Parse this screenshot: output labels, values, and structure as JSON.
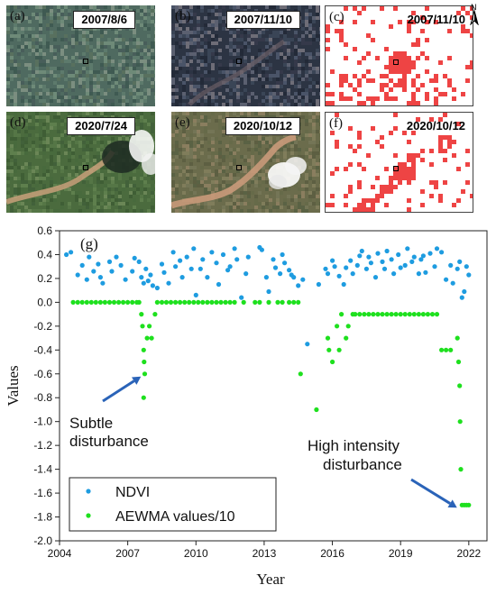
{
  "panels": [
    {
      "label": "(a)",
      "date": "2007/8/6",
      "kind": "image",
      "palette": "natural"
    },
    {
      "label": "(b)",
      "date": "2007/11/10",
      "kind": "image",
      "palette": "dark"
    },
    {
      "label": "(c)",
      "date": "2007/11/10",
      "kind": "map"
    },
    {
      "label": "(d)",
      "date": "2020/7/24",
      "kind": "image",
      "palette": "green-cloud"
    },
    {
      "label": "(e)",
      "date": "2020/10/12",
      "kind": "image",
      "palette": "brown-cloud"
    },
    {
      "label": "(f)",
      "date": "2020/10/12",
      "kind": "map"
    }
  ],
  "north_label": "N",
  "colors": {
    "ndvi": "#1e9ce0",
    "aewma": "#1ee01e",
    "disturbance": "#ee4444",
    "arrow": "#2a63b8"
  },
  "chart_data": {
    "type": "scatter",
    "panel_label": "(g)",
    "xlabel": "Year",
    "ylabel": "Values",
    "xlim": [
      2004,
      2022.8
    ],
    "ylim": [
      -2.0,
      0.6
    ],
    "x_ticks": [
      "2004",
      "2007",
      "2010",
      "2013",
      "2016",
      "2019",
      "2022"
    ],
    "y_ticks": [
      "0.6",
      "0.4",
      "0.2",
      "0.0",
      "-0.2",
      "-0.4",
      "-0.6",
      "-0.8",
      "-1.0",
      "-1.2",
      "-1.4",
      "-1.6",
      "-1.8",
      "-2.0"
    ],
    "legend": {
      "position": "bottom-left",
      "entries": [
        "NDVI",
        "AEWMA values/10"
      ]
    },
    "annotations": [
      {
        "lines": [
          "Subtle",
          "disturbance"
        ],
        "arrow_to": [
          2007.7,
          -0.6
        ]
      },
      {
        "lines": [
          "High intensity",
          "disturbance"
        ],
        "arrow_to": [
          2021.6,
          -1.7
        ]
      }
    ],
    "series": [
      {
        "name": "NDVI",
        "points": [
          [
            2004.3,
            0.4
          ],
          [
            2004.5,
            0.42
          ],
          [
            2004.8,
            0.23
          ],
          [
            2005.0,
            0.31
          ],
          [
            2005.2,
            0.19
          ],
          [
            2005.3,
            0.38
          ],
          [
            2005.5,
            0.26
          ],
          [
            2005.7,
            0.32
          ],
          [
            2005.8,
            0.21
          ],
          [
            2005.9,
            0.16
          ],
          [
            2006.2,
            0.34
          ],
          [
            2006.3,
            0.26
          ],
          [
            2006.5,
            0.38
          ],
          [
            2006.7,
            0.31
          ],
          [
            2006.9,
            0.19
          ],
          [
            2007.2,
            0.26
          ],
          [
            2007.3,
            0.37
          ],
          [
            2007.5,
            0.34
          ],
          [
            2007.6,
            0.21
          ],
          [
            2007.7,
            0.16
          ],
          [
            2007.8,
            0.28
          ],
          [
            2007.9,
            0.18
          ],
          [
            2008.0,
            0.23
          ],
          [
            2008.1,
            0.14
          ],
          [
            2008.3,
            0.12
          ],
          [
            2008.5,
            0.32
          ],
          [
            2008.6,
            0.25
          ],
          [
            2008.8,
            0.16
          ],
          [
            2009.0,
            0.42
          ],
          [
            2009.1,
            0.3
          ],
          [
            2009.3,
            0.35
          ],
          [
            2009.4,
            0.21
          ],
          [
            2009.6,
            0.38
          ],
          [
            2009.8,
            0.28
          ],
          [
            2009.9,
            0.45
          ],
          [
            2010.0,
            0.06
          ],
          [
            2010.2,
            0.28
          ],
          [
            2010.3,
            0.36
          ],
          [
            2010.5,
            0.21
          ],
          [
            2010.7,
            0.42
          ],
          [
            2010.9,
            0.33
          ],
          [
            2011.0,
            0.15
          ],
          [
            2011.2,
            0.4
          ],
          [
            2011.4,
            0.27
          ],
          [
            2011.5,
            0.3
          ],
          [
            2011.7,
            0.45
          ],
          [
            2011.8,
            0.36
          ],
          [
            2012.0,
            0.04
          ],
          [
            2012.2,
            0.24
          ],
          [
            2012.3,
            0.38
          ],
          [
            2012.8,
            0.46
          ],
          [
            2012.9,
            0.44
          ],
          [
            2013.1,
            0.21
          ],
          [
            2013.2,
            0.09
          ],
          [
            2013.4,
            0.36
          ],
          [
            2013.5,
            0.29
          ],
          [
            2013.7,
            0.24
          ],
          [
            2013.8,
            0.4
          ],
          [
            2013.9,
            0.33
          ],
          [
            2014.1,
            0.27
          ],
          [
            2014.2,
            0.23
          ],
          [
            2014.3,
            0.21
          ],
          [
            2014.5,
            0.14
          ],
          [
            2014.7,
            0.19
          ],
          [
            2014.9,
            -0.35
          ],
          [
            2015.4,
            0.15
          ],
          [
            2015.7,
            0.28
          ],
          [
            2015.8,
            0.24
          ],
          [
            2016.0,
            0.35
          ],
          [
            2016.1,
            0.3
          ],
          [
            2016.3,
            0.22
          ],
          [
            2016.5,
            0.15
          ],
          [
            2016.6,
            0.29
          ],
          [
            2016.8,
            0.35
          ],
          [
            2016.9,
            0.24
          ],
          [
            2017.1,
            0.31
          ],
          [
            2017.2,
            0.39
          ],
          [
            2017.3,
            0.43
          ],
          [
            2017.5,
            0.28
          ],
          [
            2017.6,
            0.38
          ],
          [
            2017.7,
            0.33
          ],
          [
            2017.9,
            0.21
          ],
          [
            2018.0,
            0.41
          ],
          [
            2018.2,
            0.34
          ],
          [
            2018.3,
            0.28
          ],
          [
            2018.4,
            0.43
          ],
          [
            2018.6,
            0.36
          ],
          [
            2018.7,
            0.24
          ],
          [
            2018.9,
            0.4
          ],
          [
            2019.0,
            0.29
          ],
          [
            2019.2,
            0.31
          ],
          [
            2019.3,
            0.45
          ],
          [
            2019.5,
            0.34
          ],
          [
            2019.6,
            0.38
          ],
          [
            2019.8,
            0.24
          ],
          [
            2019.9,
            0.36
          ],
          [
            2020.0,
            0.39
          ],
          [
            2020.1,
            0.25
          ],
          [
            2020.3,
            0.41
          ],
          [
            2020.5,
            0.3
          ],
          [
            2020.6,
            0.45
          ],
          [
            2020.8,
            0.42
          ],
          [
            2021.0,
            0.19
          ],
          [
            2021.2,
            0.31
          ],
          [
            2021.3,
            0.16
          ],
          [
            2021.5,
            0.28
          ],
          [
            2021.6,
            0.34
          ],
          [
            2021.7,
            0.04
          ],
          [
            2021.8,
            0.09
          ],
          [
            2021.9,
            0.3
          ],
          [
            2022.0,
            0.23
          ]
        ]
      },
      {
        "name": "AEWMA values/10",
        "points": [
          [
            2004.6,
            0.0
          ],
          [
            2004.8,
            0.0
          ],
          [
            2005.0,
            0.0
          ],
          [
            2005.2,
            0.0
          ],
          [
            2005.4,
            0.0
          ],
          [
            2005.6,
            0.0
          ],
          [
            2005.8,
            0.0
          ],
          [
            2006.0,
            0.0
          ],
          [
            2006.2,
            0.0
          ],
          [
            2006.4,
            0.0
          ],
          [
            2006.6,
            0.0
          ],
          [
            2006.8,
            0.0
          ],
          [
            2007.0,
            0.0
          ],
          [
            2007.2,
            0.0
          ],
          [
            2007.4,
            0.0
          ],
          [
            2007.5,
            0.0
          ],
          [
            2007.6,
            -0.1
          ],
          [
            2007.65,
            -0.2
          ],
          [
            2007.7,
            -0.4
          ],
          [
            2007.72,
            -0.5
          ],
          [
            2007.75,
            -0.6
          ],
          [
            2007.7,
            -0.8
          ],
          [
            2007.85,
            -0.3
          ],
          [
            2007.95,
            -0.2
          ],
          [
            2008.05,
            -0.3
          ],
          [
            2008.2,
            -0.1
          ],
          [
            2008.3,
            0.0
          ],
          [
            2008.5,
            0.0
          ],
          [
            2008.7,
            0.0
          ],
          [
            2008.9,
            0.0
          ],
          [
            2009.1,
            0.0
          ],
          [
            2009.3,
            0.0
          ],
          [
            2009.5,
            0.0
          ],
          [
            2009.7,
            0.0
          ],
          [
            2009.9,
            0.0
          ],
          [
            2010.1,
            0.0
          ],
          [
            2010.3,
            0.0
          ],
          [
            2010.5,
            0.0
          ],
          [
            2010.7,
            0.0
          ],
          [
            2010.9,
            0.0
          ],
          [
            2011.1,
            0.0
          ],
          [
            2011.3,
            0.0
          ],
          [
            2011.5,
            0.0
          ],
          [
            2011.7,
            0.0
          ],
          [
            2012.1,
            0.0
          ],
          [
            2012.6,
            0.0
          ],
          [
            2012.8,
            0.0
          ],
          [
            2013.2,
            0.0
          ],
          [
            2013.6,
            0.0
          ],
          [
            2013.8,
            0.0
          ],
          [
            2014.1,
            0.0
          ],
          [
            2014.3,
            0.0
          ],
          [
            2014.5,
            0.0
          ],
          [
            2014.6,
            -0.6
          ],
          [
            2015.3,
            -0.9
          ],
          [
            2015.8,
            -0.3
          ],
          [
            2015.85,
            -0.4
          ],
          [
            2016.0,
            -0.5
          ],
          [
            2016.2,
            -0.2
          ],
          [
            2016.3,
            -0.4
          ],
          [
            2016.4,
            -0.1
          ],
          [
            2016.6,
            -0.3
          ],
          [
            2016.7,
            -0.2
          ],
          [
            2016.9,
            -0.1
          ],
          [
            2017.0,
            -0.1
          ],
          [
            2017.2,
            -0.1
          ],
          [
            2017.4,
            -0.1
          ],
          [
            2017.6,
            -0.1
          ],
          [
            2017.8,
            -0.1
          ],
          [
            2018.0,
            -0.1
          ],
          [
            2018.2,
            -0.1
          ],
          [
            2018.4,
            -0.1
          ],
          [
            2018.6,
            -0.1
          ],
          [
            2018.8,
            -0.1
          ],
          [
            2019.0,
            -0.1
          ],
          [
            2019.2,
            -0.1
          ],
          [
            2019.4,
            -0.1
          ],
          [
            2019.6,
            -0.1
          ],
          [
            2019.8,
            -0.1
          ],
          [
            2020.0,
            -0.1
          ],
          [
            2020.2,
            -0.1
          ],
          [
            2020.4,
            -0.1
          ],
          [
            2020.6,
            -0.1
          ],
          [
            2020.8,
            -0.4
          ],
          [
            2021.0,
            -0.4
          ],
          [
            2021.2,
            -0.4
          ],
          [
            2021.5,
            -0.3
          ],
          [
            2021.55,
            -0.5
          ],
          [
            2021.6,
            -0.7
          ],
          [
            2021.62,
            -1.0
          ],
          [
            2021.65,
            -1.4
          ],
          [
            2021.7,
            -1.7
          ],
          [
            2021.8,
            -1.7
          ],
          [
            2021.9,
            -1.7
          ],
          [
            2022.0,
            -1.7
          ]
        ]
      }
    ]
  }
}
